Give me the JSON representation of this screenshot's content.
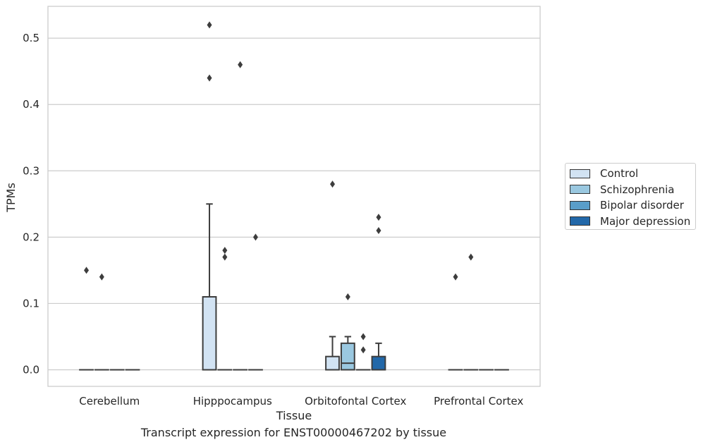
{
  "chart_data": {
    "type": "box",
    "xlabel": "Tissue",
    "ylabel": "TPMs",
    "ylim": [
      -0.025,
      0.548
    ],
    "yticks": [
      "0.0",
      "0.1",
      "0.2",
      "0.3",
      "0.4",
      "0.5"
    ],
    "categories": [
      "Cerebellum",
      "Hipppocampus",
      "Orbitofontal Cortex",
      "Prefrontal Cortex"
    ],
    "grid": "horizontal",
    "legend_placement": "right",
    "series": [
      {
        "name": "Control",
        "color": "#d2e3f3",
        "boxes": [
          {
            "category": "Cerebellum",
            "q1": 0,
            "median": 0,
            "q3": 0,
            "whislo": 0,
            "whishi": 0,
            "fliers": [
              0.15
            ]
          },
          {
            "category": "Hipppocampus",
            "q1": 0,
            "median": 0,
            "q3": 0.11,
            "whislo": 0,
            "whishi": 0.25,
            "fliers": [
              0.44,
              0.52
            ]
          },
          {
            "category": "Orbitofontal Cortex",
            "q1": 0,
            "median": 0,
            "q3": 0.02,
            "whislo": 0,
            "whishi": 0.05,
            "fliers": [
              0.28
            ]
          },
          {
            "category": "Prefrontal Cortex",
            "q1": 0,
            "median": 0,
            "q3": 0,
            "whislo": 0,
            "whishi": 0,
            "fliers": [
              0.14
            ]
          }
        ]
      },
      {
        "name": "Schizophrenia",
        "color": "#9ac8e0",
        "boxes": [
          {
            "category": "Cerebellum",
            "q1": 0,
            "median": 0,
            "q3": 0,
            "whislo": 0,
            "whishi": 0,
            "fliers": [
              0.14
            ]
          },
          {
            "category": "Hipppocampus",
            "q1": 0,
            "median": 0,
            "q3": 0,
            "whislo": 0,
            "whishi": 0,
            "fliers": [
              0.17,
              0.18
            ]
          },
          {
            "category": "Orbitofontal Cortex",
            "q1": 0,
            "median": 0.01,
            "q3": 0.04,
            "whislo": 0,
            "whishi": 0.05,
            "fliers": [
              0.11
            ]
          },
          {
            "category": "Prefrontal Cortex",
            "q1": 0,
            "median": 0,
            "q3": 0,
            "whislo": 0,
            "whishi": 0,
            "fliers": [
              0.17
            ]
          }
        ]
      },
      {
        "name": "Bipolar disorder",
        "color": "#5a9ec9",
        "boxes": [
          {
            "category": "Cerebellum",
            "q1": 0,
            "median": 0,
            "q3": 0,
            "whislo": 0,
            "whishi": 0,
            "fliers": []
          },
          {
            "category": "Hipppocampus",
            "q1": 0,
            "median": 0,
            "q3": 0,
            "whislo": 0,
            "whishi": 0,
            "fliers": [
              0.46
            ]
          },
          {
            "category": "Orbitofontal Cortex",
            "q1": 0,
            "median": 0,
            "q3": 0,
            "whislo": 0,
            "whishi": 0,
            "fliers": [
              0.03,
              0.05
            ]
          },
          {
            "category": "Prefrontal Cortex",
            "q1": 0,
            "median": 0,
            "q3": 0,
            "whislo": 0,
            "whishi": 0,
            "fliers": []
          }
        ]
      },
      {
        "name": "Major depression",
        "color": "#2268a9",
        "boxes": [
          {
            "category": "Cerebellum",
            "q1": 0,
            "median": 0,
            "q3": 0,
            "whislo": 0,
            "whishi": 0,
            "fliers": []
          },
          {
            "category": "Hipppocampus",
            "q1": 0,
            "median": 0,
            "q3": 0,
            "whislo": 0,
            "whishi": 0,
            "fliers": [
              0.2
            ]
          },
          {
            "category": "Orbitofontal Cortex",
            "q1": 0,
            "median": 0,
            "q3": 0.02,
            "whislo": 0,
            "whishi": 0.04,
            "fliers": [
              0.21,
              0.23
            ]
          },
          {
            "category": "Prefrontal Cortex",
            "q1": 0,
            "median": 0,
            "q3": 0,
            "whislo": 0,
            "whishi": 0,
            "fliers": []
          }
        ]
      }
    ]
  },
  "caption": "Transcript expression for ENST00000467202 by tissue"
}
